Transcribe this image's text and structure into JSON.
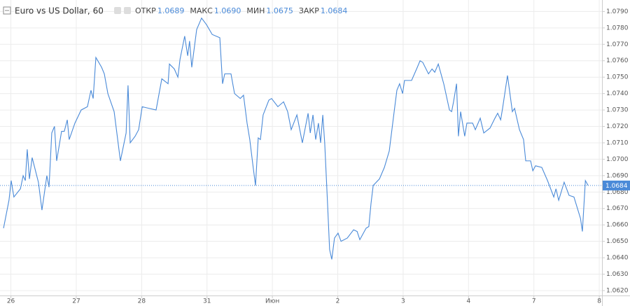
{
  "chart_data": {
    "type": "line",
    "title": "Euro vs US Dollar, 60",
    "ohlc": [
      {
        "name": "ОТКР",
        "value": 1.0689
      },
      {
        "name": "МАКС",
        "value": 1.069,
        "value_label": "1.0690"
      },
      {
        "name": "МИН",
        "value": 1.0675
      },
      {
        "name": "ЗАКР",
        "value": 1.0684
      }
    ],
    "color": "#4a8ad8",
    "grid": true,
    "x": [
      0.3,
      2.3,
      3.1,
      4.1,
      6.5,
      7.5,
      8.3,
      9.0,
      9.8,
      10.8,
      13.1,
      14.4,
      16.2,
      17.0,
      18.0,
      19.0,
      19.8,
      21.6,
      22.6,
      23.7,
      24.4,
      26.5,
      28.8,
      31.1,
      32.4,
      33.2,
      34.2,
      36.3,
      37.3,
      38.6,
      40.9,
      43.2,
      45.3,
      46.0,
      46.8,
      48.6,
      49.9,
      51.2,
      53.7,
      56.3,
      58.4,
      60.7,
      61.2,
      63.0,
      64.3,
      65.1,
      66.8,
      67.9,
      68.6,
      69.4,
      71.2,
      73.0,
      74.8,
      76.9,
      79.7,
      80.7,
      81.5,
      83.8,
      85.1,
      87.2,
      88.4,
      89.7,
      90.7,
      91.8,
      92.8,
      93.8,
      94.6,
      95.6,
      97.7,
      98.7,
      101.0,
      103.1,
      104.6,
      105.9,
      108.0,
      110.0,
      112.1,
      112.9,
      113.9,
      114.9,
      115.9,
      116.7,
      117.5,
      118.2,
      119.3,
      120.0,
      120.8,
      121.8,
      123.1,
      124.2,
      126.5,
      128.8,
      130.1,
      131.1,
      133.4,
      134.4,
      135.2,
      136.0,
      138.3,
      140.1,
      141.9,
      143.7,
      144.7,
      145.7,
      146.8,
      147.5,
      150.1,
      152.2,
      153.2,
      154.2,
      156.3,
      157.6,
      158.6,
      159.9,
      161.9,
      164.0,
      164.8,
      165.5,
      166.6,
      167.3,
      168.1,
      169.6,
      170.4,
      172.5,
      173.5,
      175.3,
      176.6,
      178.9,
      180.7,
      181.7,
      182.8,
      183.5,
      185.3,
      187.1,
      187.9,
      189.7,
      191.2,
      192.0,
      193.8,
      194.6,
      195.6,
      197.9,
      200.0,
      202.3,
      203.1,
      204.1,
      206.1,
      207.9,
      209.7,
      212.1,
      212.8,
      213.9,
      214.9
    ],
    "values": [
      1.0658,
      1.0675,
      1.0687,
      1.0677,
      1.0682,
      1.069,
      1.0687,
      1.0706,
      1.0688,
      1.0701,
      1.0686,
      1.0669,
      1.069,
      1.0683,
      1.0716,
      1.072,
      1.0699,
      1.0717,
      1.0717,
      1.0724,
      1.0712,
      1.0722,
      1.073,
      1.0732,
      1.0742,
      1.0737,
      1.0762,
      1.0756,
      1.0752,
      1.074,
      1.0729,
      1.0699,
      1.0716,
      1.0745,
      1.071,
      1.0714,
      1.0718,
      1.0732,
      1.0731,
      1.073,
      1.0749,
      1.0746,
      1.0758,
      1.0755,
      1.075,
      1.0761,
      1.0775,
      1.0763,
      1.0772,
      1.0756,
      1.0779,
      1.0786,
      1.0782,
      1.0776,
      1.0774,
      1.0746,
      1.0752,
      1.0752,
      1.074,
      1.0737,
      1.0739,
      1.0722,
      1.0712,
      1.0697,
      1.0684,
      1.0713,
      1.0712,
      1.0727,
      1.0736,
      1.0737,
      1.0732,
      1.0735,
      1.0729,
      1.0718,
      1.0727,
      1.071,
      1.0728,
      1.0716,
      1.0727,
      1.0712,
      1.0722,
      1.071,
      1.0727,
      1.071,
      1.0671,
      1.0645,
      1.0639,
      1.0652,
      1.0655,
      1.065,
      1.0652,
      1.0657,
      1.0656,
      1.0651,
      1.0658,
      1.0659,
      1.0673,
      1.0684,
      1.0688,
      1.0695,
      1.0705,
      1.0729,
      1.0742,
      1.0746,
      1.074,
      1.0748,
      1.0748,
      1.0756,
      1.076,
      1.0759,
      1.0752,
      1.0755,
      1.0753,
      1.0758,
      1.0746,
      1.073,
      1.0729,
      1.0735,
      1.0746,
      1.0714,
      1.0729,
      1.0714,
      1.0722,
      1.0722,
      1.0718,
      1.0725,
      1.0716,
      1.0719,
      1.0725,
      1.0728,
      1.0724,
      1.0731,
      1.0751,
      1.0729,
      1.0731,
      1.0718,
      1.0712,
      1.0699,
      1.0699,
      1.0693,
      1.0696,
      1.0695,
      1.0687,
      1.0677,
      1.0682,
      1.0675,
      1.0686,
      1.0678,
      1.0677,
      1.0664,
      1.0656,
      1.0687,
      1.0684
    ],
    "xlim": [
      -1,
      220
    ],
    "xticks": [
      {
        "value": 3,
        "label": "26"
      },
      {
        "value": 27,
        "label": "27"
      },
      {
        "value": 51,
        "label": "28"
      },
      {
        "value": 75,
        "label": "31"
      },
      {
        "value": 99,
        "label": "Июн"
      },
      {
        "value": 123,
        "label": "2"
      },
      {
        "value": 147,
        "label": "3"
      },
      {
        "value": 171,
        "label": "4"
      },
      {
        "value": 195,
        "label": "7"
      },
      {
        "value": 219,
        "label": "8"
      }
    ],
    "ylim": [
      1.0617,
      1.0797
    ],
    "yticks": [
      {
        "value": 1.062,
        "label": "1.0620"
      },
      {
        "value": 1.063,
        "label": "1.0630"
      },
      {
        "value": 1.064,
        "label": "1.0640"
      },
      {
        "value": 1.065,
        "label": "1.0650"
      },
      {
        "value": 1.066,
        "label": "1.0660"
      },
      {
        "value": 1.067,
        "label": "1.0670"
      },
      {
        "value": 1.068,
        "label": "1.0680"
      },
      {
        "value": 1.069,
        "label": "1.0690"
      },
      {
        "value": 1.07,
        "label": "1.0700"
      },
      {
        "value": 1.071,
        "label": "1.0710"
      },
      {
        "value": 1.072,
        "label": "1.0720"
      },
      {
        "value": 1.073,
        "label": "1.0730"
      },
      {
        "value": 1.074,
        "label": "1.0740"
      },
      {
        "value": 1.075,
        "label": "1.0750"
      },
      {
        "value": 1.076,
        "label": "1.0760"
      },
      {
        "value": 1.077,
        "label": "1.0770"
      },
      {
        "value": 1.078,
        "label": "1.0780"
      },
      {
        "value": 1.079,
        "label": "1.0790"
      }
    ]
  }
}
